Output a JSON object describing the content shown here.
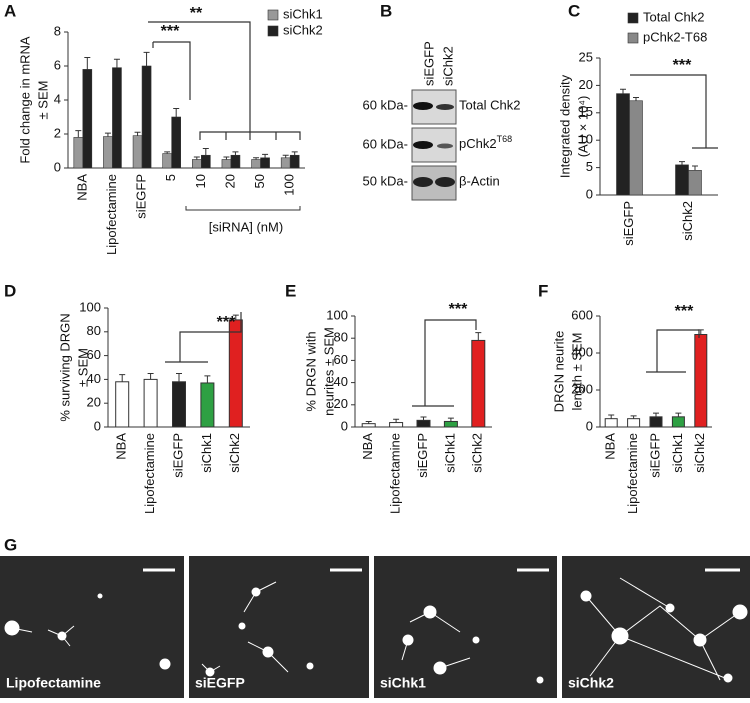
{
  "chart_data": [
    {
      "panel": "A",
      "type": "bar",
      "y_label": [
        "Fold change in mRNA",
        "± SEM"
      ],
      "categories": [
        "NBA",
        "Lipofectamine",
        "siEGFP",
        "5",
        "10",
        "20",
        "50",
        "100"
      ],
      "x_group_label": "[siRNA] (nM)",
      "series": [
        {
          "name": "siChk1",
          "color": "#999999",
          "values": [
            1.8,
            1.85,
            1.9,
            0.85,
            0.5,
            0.5,
            0.5,
            0.6
          ],
          "errors": [
            0.4,
            0.2,
            0.2,
            0.1,
            0.15,
            0.15,
            0.1,
            0.15
          ]
        },
        {
          "name": "siChk2",
          "color": "#222222",
          "values": [
            5.8,
            5.9,
            6.0,
            3.0,
            0.75,
            0.75,
            0.6,
            0.75
          ],
          "errors": [
            0.7,
            0.5,
            0.8,
            0.5,
            0.4,
            0.2,
            0.2,
            0.2
          ]
        }
      ],
      "ylim": [
        0,
        8
      ],
      "yticks": [
        0,
        2,
        4,
        6,
        8
      ],
      "annotations": [
        "**",
        "***"
      ]
    },
    {
      "panel": "C",
      "type": "bar",
      "y_label": [
        "Integrated density",
        "(AU × 10⁴)"
      ],
      "categories": [
        "siEGFP",
        "siChk2"
      ],
      "series": [
        {
          "name": "Total Chk2",
          "color": "#222222",
          "values": [
            18.5,
            5.5
          ],
          "errors": [
            0.8,
            0.6
          ]
        },
        {
          "name": "pChk2-T68",
          "color": "#888888",
          "values": [
            17.2,
            4.5
          ],
          "errors": [
            0.6,
            0.8
          ]
        }
      ],
      "ylim": [
        0,
        25
      ],
      "yticks": [
        0,
        5,
        10,
        15,
        20,
        25
      ],
      "annotations": [
        "***"
      ]
    },
    {
      "panel": "D",
      "type": "bar",
      "y_label": [
        "% surviving DRGN",
        "± SEM"
      ],
      "categories": [
        "NBA",
        "Lipofectamine",
        "siEGFP",
        "siChk1",
        "siChk2"
      ],
      "values": [
        38,
        40,
        38,
        37,
        90
      ],
      "errors": [
        6,
        5,
        7,
        6,
        4
      ],
      "colors": [
        "#ffffff",
        "#ffffff",
        "#222222",
        "#2ea043",
        "#e02020"
      ],
      "ylim": [
        0,
        100
      ],
      "yticks": [
        0,
        20,
        40,
        60,
        80,
        100
      ],
      "annotations": [
        "***"
      ]
    },
    {
      "panel": "E",
      "type": "bar",
      "y_label": [
        "% DRGN with",
        "neurites ± SEM"
      ],
      "categories": [
        "NBA",
        "Lipofectamine",
        "siEGFP",
        "siChk1",
        "siChk2"
      ],
      "values": [
        3,
        4,
        6,
        5,
        78
      ],
      "errors": [
        2,
        3,
        3,
        3,
        7
      ],
      "colors": [
        "#ffffff",
        "#ffffff",
        "#222222",
        "#2ea043",
        "#e02020"
      ],
      "ylim": [
        0,
        100
      ],
      "yticks": [
        0,
        20,
        40,
        60,
        80,
        100
      ],
      "annotations": [
        "***"
      ]
    },
    {
      "panel": "F",
      "type": "bar",
      "y_label": [
        "DRGN neurite",
        "length ± SEM"
      ],
      "categories": [
        "NBA",
        "Lipofectamine",
        "siEGFP",
        "siChk1",
        "siChk2"
      ],
      "values": [
        45,
        45,
        55,
        55,
        500
      ],
      "errors": [
        20,
        15,
        20,
        20,
        25
      ],
      "colors": [
        "#ffffff",
        "#ffffff",
        "#222222",
        "#2ea043",
        "#e02020"
      ],
      "ylim": [
        0,
        600
      ],
      "yticks": [
        0,
        200,
        400,
        600
      ],
      "annotations": [
        "***"
      ]
    }
  ],
  "blot": {
    "panel": "B",
    "lanes": [
      "siEGFP",
      "siChk2"
    ],
    "rows": [
      {
        "marker": "60 kDa-",
        "label": "Total Chk2",
        "sup": ""
      },
      {
        "marker": "60 kDa-",
        "label": "pChk2",
        "sup": "T68"
      },
      {
        "marker": "50 kDa-",
        "label": "β-Actin",
        "sup": ""
      }
    ]
  },
  "images": {
    "panel": "G",
    "captions": [
      "Lipofectamine",
      "siEGFP",
      "siChk1",
      "siChk2"
    ]
  }
}
